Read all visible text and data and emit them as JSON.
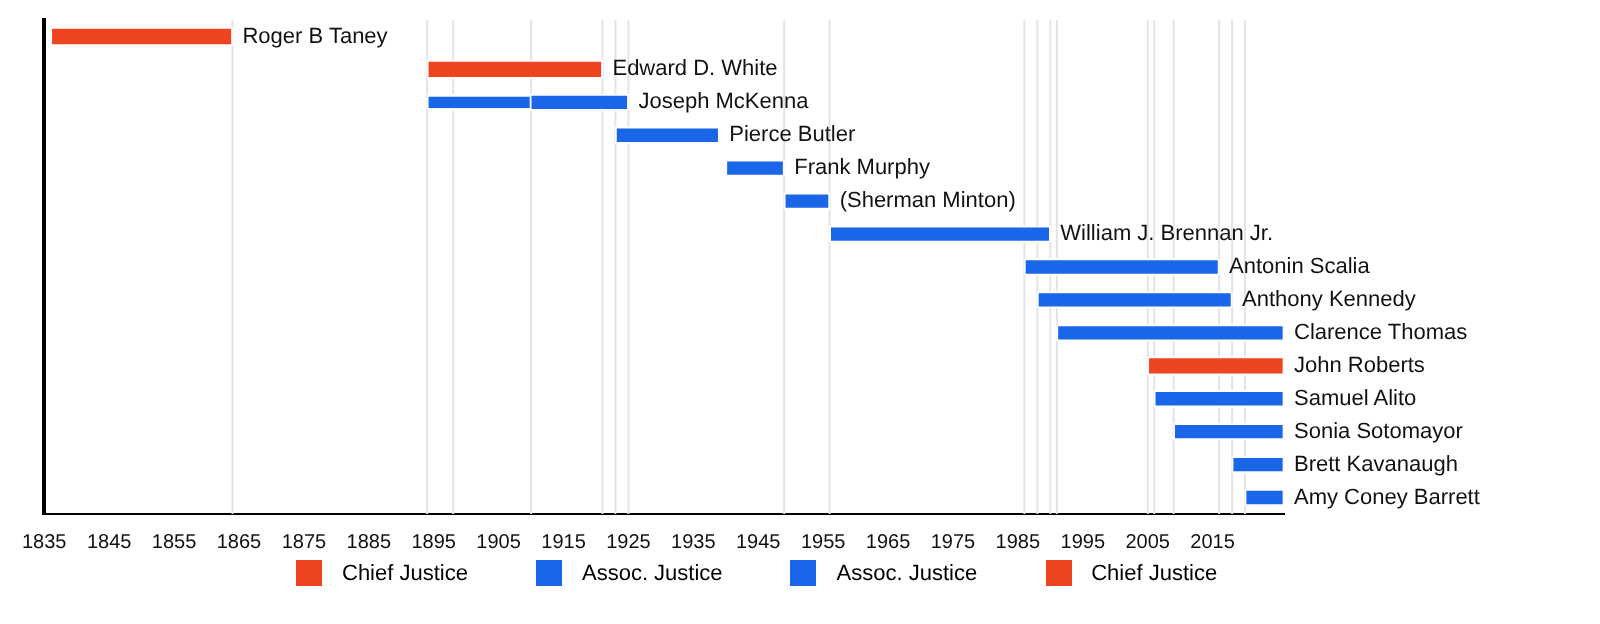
{
  "chart_data": {
    "type": "bar",
    "orientation": "horizontal",
    "categories": [
      "Roger B Taney",
      "Edward D. White",
      "Joseph McKenna",
      "Pierce Butler",
      "Frank Murphy",
      "(Sherman Minton)",
      "William J. Brennan Jr.",
      "Antonin Scalia",
      "Anthony Kennedy",
      "Clarence Thomas",
      "John Roberts",
      "Samuel Alito",
      "Sonia Sotomayor",
      "Brett Kavanaugh",
      "Amy Coney Barrett"
    ],
    "series": [
      {
        "name": "Chief Justice",
        "color": "#ee4422",
        "base": [
          1836,
          1894,
          null,
          null,
          null,
          null,
          null,
          null,
          null,
          null,
          2005,
          null,
          null,
          null,
          null
        ],
        "values": [
          28,
          27,
          null,
          null,
          null,
          null,
          null,
          null,
          null,
          null,
          21,
          null,
          null,
          null,
          null
        ]
      },
      {
        "name": "Assoc. Justice",
        "color": "#1a66e8",
        "base": [
          null,
          null,
          1898,
          1923,
          1940,
          1949,
          1956,
          1986,
          1988,
          1991,
          null,
          2006,
          2009,
          2018,
          2020
        ],
        "values": [
          null,
          null,
          27,
          16,
          9,
          7,
          34,
          30,
          30,
          35,
          null,
          20,
          17,
          8,
          6
        ]
      },
      {
        "name": "Assoc. Justice",
        "color": "#1a66e8",
        "base": [
          null,
          null,
          1894,
          null,
          null,
          null,
          null,
          null,
          null,
          null,
          null,
          null,
          null,
          null,
          null
        ],
        "values": [
          null,
          null,
          16,
          null,
          null,
          null,
          null,
          null,
          null,
          null,
          null,
          null,
          null,
          null,
          null
        ]
      },
      {
        "name": "Chief Justice",
        "color": "#ee4422",
        "base": [
          null,
          null,
          null,
          null,
          null,
          null,
          null,
          null,
          null,
          null,
          null,
          null,
          null,
          null,
          null
        ],
        "values": [
          null,
          null,
          null,
          null,
          null,
          null,
          null,
          null,
          null,
          null,
          null,
          null,
          null,
          null,
          null
        ]
      }
    ],
    "xlim": [
      1835,
      2026
    ],
    "xticks": [
      1835,
      1845,
      1855,
      1865,
      1875,
      1885,
      1895,
      1905,
      1915,
      1925,
      1935,
      1945,
      1955,
      1965,
      1975,
      1985,
      1995,
      2005,
      2015
    ],
    "tick_labels": "x",
    "grid": false,
    "legend": "bottom",
    "ref_lines": [
      {
        "axis": "x",
        "value": 1864,
        "color": "#e4e4e4"
      },
      {
        "axis": "x",
        "value": 1894,
        "color": "#e4e4e4"
      },
      {
        "axis": "x",
        "value": 1898,
        "color": "#e4e4e4"
      },
      {
        "axis": "x",
        "value": 1910,
        "color": "#e4e4e4"
      },
      {
        "axis": "x",
        "value": 1921,
        "color": "#e4e4e4"
      },
      {
        "axis": "x",
        "value": 1923,
        "color": "#e4e4e4"
      },
      {
        "axis": "x",
        "value": 1925,
        "color": "#e4e4e4"
      },
      {
        "axis": "x",
        "value": 1949,
        "color": "#e4e4e4"
      },
      {
        "axis": "x",
        "value": 1956,
        "color": "#e4e4e4"
      },
      {
        "axis": "x",
        "value": 1986,
        "color": "#e4e4e4"
      },
      {
        "axis": "x",
        "value": 1988,
        "color": "#e4e4e4"
      },
      {
        "axis": "x",
        "value": 1990,
        "color": "#e4e4e4"
      },
      {
        "axis": "x",
        "value": 1991,
        "color": "#e4e4e4"
      },
      {
        "axis": "x",
        "value": 2005,
        "color": "#e4e4e4"
      },
      {
        "axis": "x",
        "value": 2006,
        "color": "#e4e4e4"
      },
      {
        "axis": "x",
        "value": 2009,
        "color": "#e4e4e4"
      },
      {
        "axis": "x",
        "value": 2016,
        "color": "#e4e4e4"
      },
      {
        "axis": "x",
        "value": 2018,
        "color": "#e4e4e4"
      },
      {
        "axis": "x",
        "value": 2020,
        "color": "#e4e4e4"
      }
    ]
  }
}
